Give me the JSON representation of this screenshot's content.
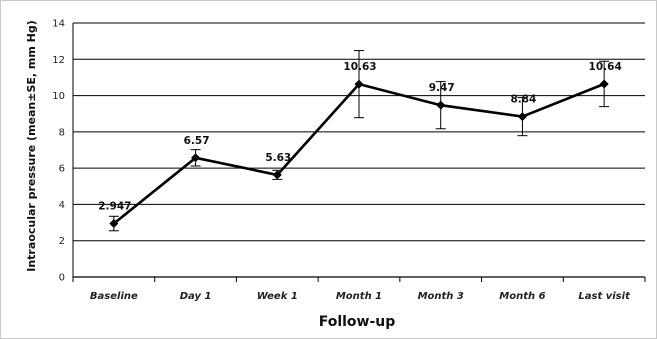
{
  "chart_data": {
    "type": "line",
    "title": "",
    "xlabel": "Follow-up",
    "ylabel": "Intraocular pressure (mean±SE, mm Hg)",
    "categories": [
      "Baseline",
      "Day 1",
      "Week 1",
      "Month 1",
      "Month 3",
      "Month 6",
      "Last visit"
    ],
    "values": [
      2.947,
      6.57,
      5.63,
      10.63,
      9.47,
      8.84,
      10.64
    ],
    "data_labels": [
      "2.947",
      "6.57",
      "5.63",
      "10.63",
      "9.47",
      "8.84",
      "10.64"
    ],
    "error": [
      0.4,
      0.45,
      0.25,
      1.85,
      1.3,
      1.05,
      1.25
    ],
    "ylim": [
      0,
      14
    ],
    "yticks": [
      0,
      2,
      4,
      6,
      8,
      10,
      12,
      14
    ],
    "grid": true,
    "legend": "none",
    "line_color": "#000000",
    "grid_color": "#000000"
  }
}
